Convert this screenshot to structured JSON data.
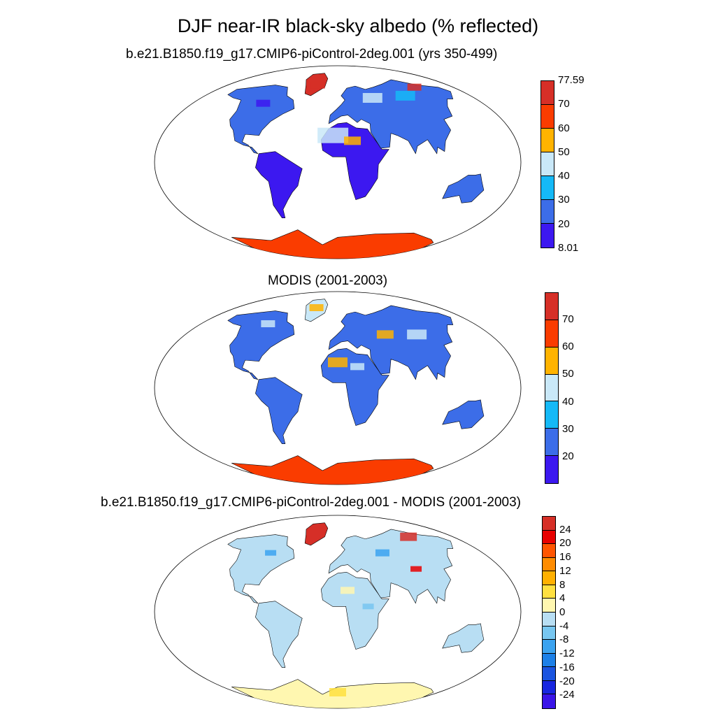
{
  "title": "DJF near-IR black-sky albedo (% reflected)",
  "panels": [
    {
      "subtitle": "b.e21.B1850.f19_g17.CMIP6-piControl-2deg.001 (yrs 350-499)"
    },
    {
      "subtitle": "MODIS (2001-2003)"
    },
    {
      "subtitle": "b.e21.B1850.f19_g17.CMIP6-piControl-2deg.001 - MODIS (2001-2003)"
    }
  ],
  "colorbars": [
    {
      "colors": [
        "#d62f27",
        "#fa3c00",
        "#ffb300",
        "#c9e8f8",
        "#15b9f7",
        "#3c6de8",
        "#3c18f0"
      ],
      "labels": [
        "77.59",
        "70",
        "60",
        "50",
        "40",
        "30",
        "20",
        "8.01"
      ]
    },
    {
      "colors": [
        "#d62f27",
        "#fa3c00",
        "#ffb300",
        "#c9e8f8",
        "#15b9f7",
        "#3c6de8",
        "#3c18f0"
      ],
      "labels": [
        "70",
        "60",
        "50",
        "40",
        "30",
        "20"
      ]
    },
    {
      "colors": [
        "#d62f27",
        "#e80000",
        "#ff5500",
        "#ff8c00",
        "#ffb000",
        "#ffe040",
        "#fff7b0",
        "#b8def3",
        "#77c6f0",
        "#3ba3f0",
        "#1c80e8",
        "#1a54e0",
        "#1726e0",
        "#3a14e8"
      ],
      "labels": [
        "24",
        "20",
        "16",
        "12",
        "8",
        "4",
        "0",
        "-4",
        "-8",
        "-12",
        "-16",
        "-20",
        "-24"
      ]
    }
  ]
}
